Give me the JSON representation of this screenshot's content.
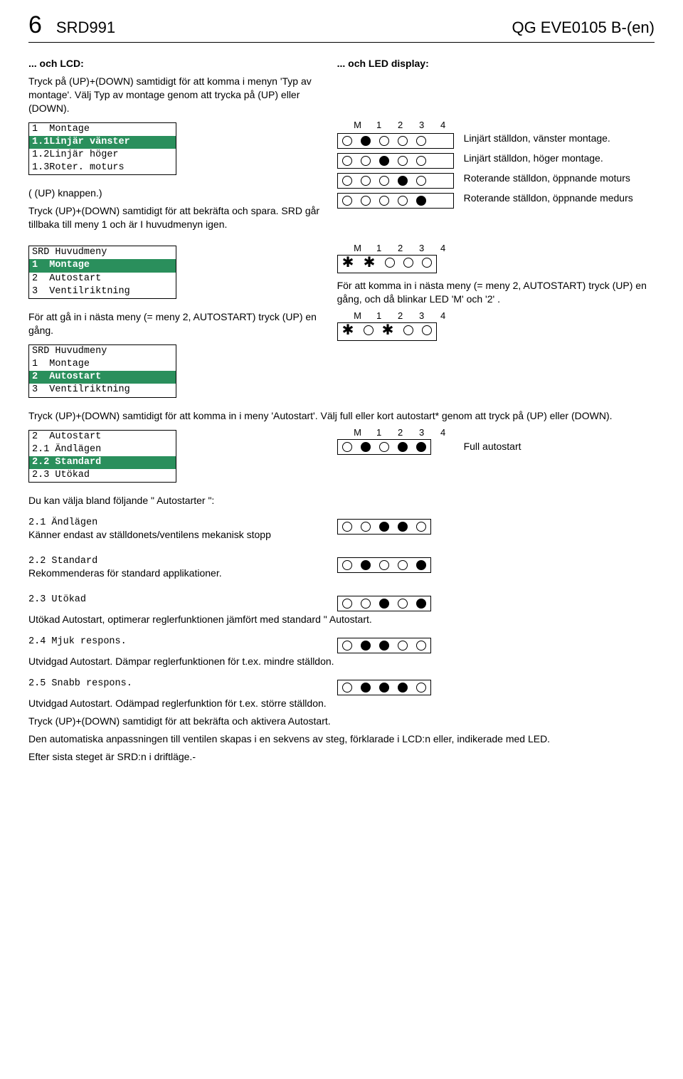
{
  "header": {
    "page_number": "6",
    "model": "SRD991",
    "doc_code": "QG EVE0105 B-(en)"
  },
  "intro": {
    "left_heading": "... och LCD:",
    "right_heading": "... och LED display:",
    "lcd_instruction": "Tryck på (UP)+(DOWN) samtidigt för att komma i menyn 'Typ av montage'. Välj Typ av montage genom att trycka på (UP) eller (DOWN)."
  },
  "menu_montage": {
    "title": "1  Montage",
    "items": [
      "1.1Linjär vänster",
      "1.2Linjär höger",
      "1.3Roter. moturs"
    ],
    "selected": 0,
    "after": "( (UP) knappen.)",
    "confirm": "Tryck (UP)+(DOWN) samtidigt för att bekräfta och spara. SRD går tillbaka till meny 1 och är I huvudmenyn igen."
  },
  "led_montage": {
    "header": [
      "M",
      "1",
      "2",
      "3",
      "4"
    ],
    "rows": [
      {
        "dots": [
          0,
          1,
          0,
          0,
          0
        ],
        "label": "Linjärt ställdon, vänster montage."
      },
      {
        "dots": [
          0,
          0,
          1,
          0,
          0
        ],
        "label": "Linjärt ställdon, höger montage."
      },
      {
        "dots": [
          0,
          0,
          0,
          1,
          0
        ],
        "label": "Roterande ställdon, öppnande moturs"
      },
      {
        "dots": [
          0,
          0,
          0,
          0,
          1
        ],
        "label": "Roterande ställdon, öppnande medurs"
      }
    ]
  },
  "menu_main_a": {
    "title": "SRD Huvudmeny",
    "items": [
      "1  Montage",
      "2  Autostart",
      "3  Ventilriktning"
    ],
    "selected": 0
  },
  "step2_text": "För att gå in i nästa meny (= meny 2, AUTOSTART) tryck (UP) en gång.",
  "menu_main_b": {
    "title": "SRD Huvudmeny",
    "items": [
      "1  Montage",
      "2  Autostart",
      "3  Ventilriktning"
    ],
    "selected": 1
  },
  "led_main": {
    "header": [
      "M",
      "1",
      "2",
      "3",
      "4"
    ],
    "rows": [
      {
        "dots": [
          "*",
          "*",
          0,
          0,
          0
        ]
      }
    ],
    "text": "För att komma in i nästa meny (= meny 2, AUTOSTART) tryck (UP) en gång, och då blinkar LED 'M' och '2' .",
    "rows2": [
      {
        "dots": [
          "*",
          0,
          "*",
          0,
          0
        ]
      }
    ]
  },
  "autostart_enter": "Tryck (UP)+(DOWN) samtidigt för att komma in i meny 'Autostart'. Välj full eller kort autostart* genom att tryck på (UP) eller (DOWN).",
  "menu_autostart": {
    "title": "2  Autostart",
    "items": [
      "2.1 Ändlägen",
      "2.2 Standard",
      "2.3 Utökad"
    ],
    "selected": 1
  },
  "led_autostart": {
    "header": [
      "M",
      "1",
      "2",
      "3",
      "4"
    ],
    "rows": [
      {
        "dots": [
          0,
          1,
          0,
          1,
          1
        ],
        "label": "Full autostart"
      }
    ]
  },
  "choices_intro": "Du kan välja bland följande \" Autostarter \":",
  "choices": [
    {
      "code": "2.1 Ändlägen",
      "text": "Känner endast av ställdonets/ventilens mekanisk stopp",
      "dots": [
        0,
        0,
        1,
        1,
        0
      ]
    },
    {
      "code": "2.2 Standard",
      "text": "Rekommenderas för standard applikationer.",
      "dots": [
        0,
        1,
        0,
        0,
        1
      ]
    },
    {
      "code": "2.3 Utökad",
      "text": "Utökad Autostart, optimerar reglerfunktionen jämfört med standard \" Autostart.",
      "dots": [
        0,
        0,
        1,
        0,
        1
      ]
    },
    {
      "code": "2.4 Mjuk respons.",
      "text": "Utvidgad Autostart. Dämpar reglerfunktionen för t.ex. mindre ställdon.",
      "dots": [
        0,
        1,
        1,
        0,
        0
      ]
    },
    {
      "code": "2.5 Snabb respons.",
      "text": "Utvidgad Autostart. Odämpad reglerfunktion för t.ex. större ställdon.",
      "dots": [
        0,
        1,
        1,
        1,
        0
      ]
    }
  ],
  "closing": [
    "Tryck (UP)+(DOWN) samtidigt för att bekräfta och aktivera  Autostart.",
    "Den automatiska anpassningen till ventilen skapas i en sekvens av steg, förklarade i LCD:n eller, indikerade med LED.",
    "Efter sista steget är SRD:n i driftläge.-"
  ]
}
